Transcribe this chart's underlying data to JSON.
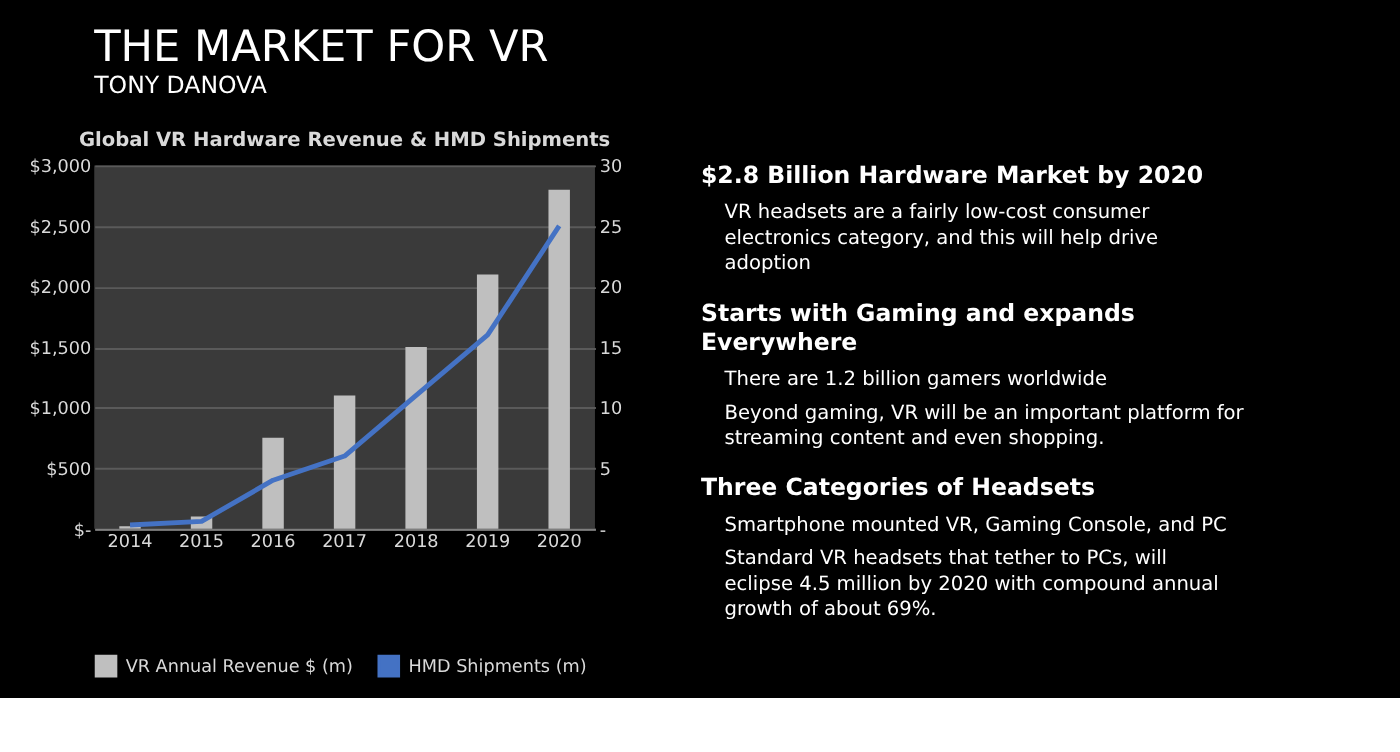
{
  "chart_data": {
    "type": "bar",
    "title": "Global VR Hardware Revenue & HMD Shipments",
    "categories": [
      "2014",
      "2015",
      "2016",
      "2017",
      "2018",
      "2019",
      "2020"
    ],
    "series": [
      {
        "name": "VR Annual Revenue $ (m)",
        "color": "#bfbfbf",
        "values": [
          20,
          100,
          750,
          1100,
          1500,
          2100,
          2800
        ]
      },
      {
        "name": "HMD Shipments (m)",
        "type": "line",
        "axis": "y2",
        "color": "#4472c4",
        "values": [
          0.3,
          0.6,
          4,
          6,
          11,
          16,
          25
        ]
      }
    ],
    "ylim": [
      0,
      3000
    ],
    "yticks": [
      {
        "value": 0,
        "label": "$-"
      },
      {
        "value": 500,
        "label": "$500"
      },
      {
        "value": 1000,
        "label": "$1,000"
      },
      {
        "value": 1500,
        "label": "$1,500"
      },
      {
        "value": 2000,
        "label": "$2,000"
      },
      {
        "value": 2500,
        "label": "$2,500"
      },
      {
        "value": 3000,
        "label": "$3,000"
      }
    ],
    "y2lim": [
      0,
      30
    ],
    "y2ticks": [
      {
        "value": 0,
        "label": "-"
      },
      5,
      10,
      15,
      20,
      25,
      30
    ],
    "grid": "y",
    "legend": "bottom",
    "marker": "none",
    "line_style": "solid",
    "annotations": [
      "THE MARKET FOR VR",
      "TONY DANOVA",
      "$2.8 Billion Hardware Market by 2020",
      "VR headsets are a fairly low-cost consumer electronics category, and this will help drive adoption",
      "Starts with Gaming and expands Everywhere",
      "There are 1.2 billion gamers worldwide",
      "Beyond gaming, VR will be an important platform for streaming content and even shopping.",
      "Three Categories of Headsets",
      "Smartphone mounted VR, Gaming Console, and PC",
      "Standard VR headsets that tether to PCs, will eclipse 4.5 million by 2020 with compound annual growth of about 69%."
    ]
  }
}
